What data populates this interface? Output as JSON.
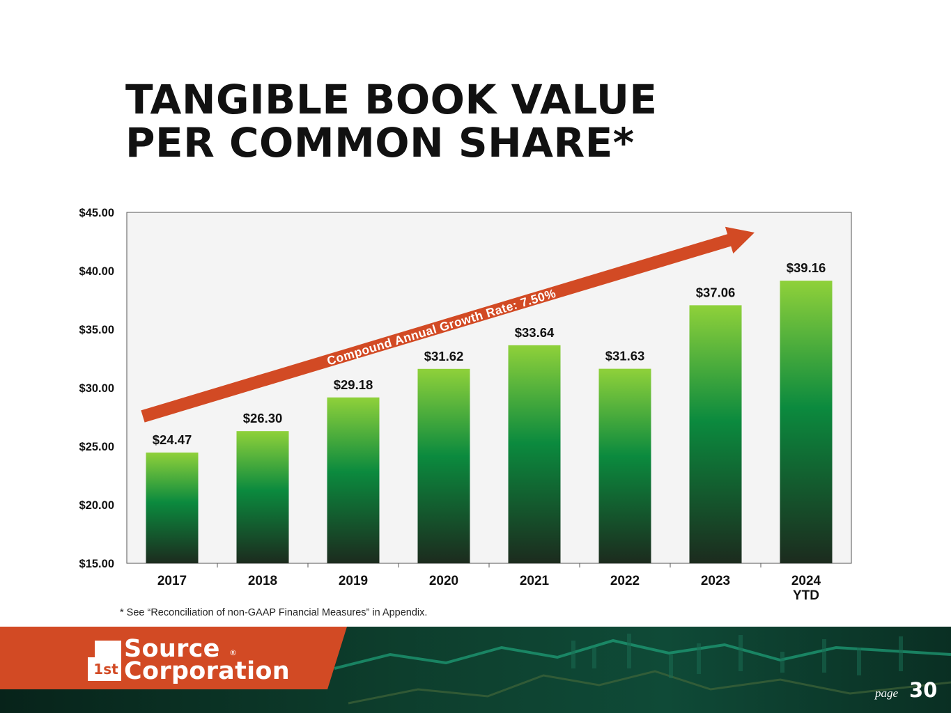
{
  "title": {
    "line1": "TANGIBLE BOOK VALUE",
    "line2": "PER COMMON SHARE*"
  },
  "chart_data": {
    "type": "bar",
    "title": "TANGIBLE BOOK VALUE PER COMMON SHARE*",
    "categories": [
      [
        "2017"
      ],
      [
        "2018"
      ],
      [
        "2019"
      ],
      [
        "2020"
      ],
      [
        "2021"
      ],
      [
        "2022"
      ],
      [
        "2023"
      ],
      [
        "2024",
        "YTD"
      ]
    ],
    "values": [
      24.47,
      26.3,
      29.18,
      31.62,
      33.64,
      31.63,
      37.06,
      39.16
    ],
    "value_labels": [
      "$24.47",
      "$26.30",
      "$29.18",
      "$31.62",
      "$33.64",
      "$31.63",
      "$37.06",
      "$39.16"
    ],
    "ylim": [
      15,
      45
    ],
    "y_ticks": [
      15,
      20,
      25,
      30,
      35,
      40,
      45
    ],
    "y_tick_labels": [
      "$15.00",
      "$20.00",
      "$25.00",
      "$30.00",
      "$35.00",
      "$40.00",
      "$45.00"
    ],
    "grid": false,
    "annotation": "Compound Annual Growth Rate: 7.50%",
    "colors": {
      "bar_top": "#8fd13a",
      "bar_mid": "#0b8a3e",
      "bar_bottom": "#1c2b1e",
      "arrow": "#d24a24",
      "plot_background": "#f4f4f4"
    }
  },
  "footnote": "* See “Reconciliation of non-GAAP Financial Measures” in Appendix.",
  "footer": {
    "logo_line1": "Source",
    "logo_line2": "Corporation",
    "logo_mark_text": "1st",
    "logo_registered": "®",
    "page_label": "page",
    "page_number": "30",
    "brand_color": "#d24a24"
  }
}
